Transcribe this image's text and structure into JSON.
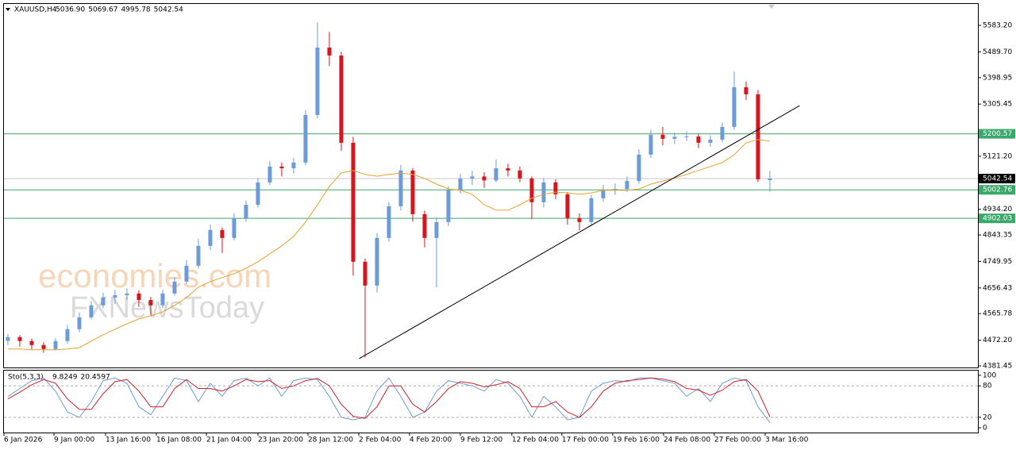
{
  "chart_data": [
    {
      "type": "candlestick",
      "title": "XAUUSD,H4",
      "header_labels": [
        "5036.90",
        "5069.67",
        "4995.78",
        "5042.54"
      ],
      "up_color": "#6b9bd8",
      "down_color": "#d9141c",
      "ohlc": [
        [
          4470,
          4495,
          4455,
          4483
        ],
        [
          4483,
          4490,
          4450,
          4469
        ],
        [
          4469,
          4478,
          4440,
          4455
        ],
        [
          4455,
          4465,
          4428,
          4441
        ],
        [
          4441,
          4480,
          4435,
          4469
        ],
        [
          4469,
          4525,
          4460,
          4511
        ],
        [
          4511,
          4570,
          4500,
          4553
        ],
        [
          4553,
          4610,
          4545,
          4595
        ],
        [
          4595,
          4640,
          4585,
          4623
        ],
        [
          4623,
          4650,
          4600,
          4631
        ],
        [
          4631,
          4655,
          4615,
          4637
        ],
        [
          4637,
          4648,
          4590,
          4614
        ],
        [
          4614,
          4625,
          4560,
          4595
        ],
        [
          4595,
          4650,
          4585,
          4637
        ],
        [
          4637,
          4695,
          4630,
          4679
        ],
        [
          4679,
          4755,
          4670,
          4735
        ],
        [
          4735,
          4830,
          4725,
          4805
        ],
        [
          4805,
          4880,
          4790,
          4861
        ],
        [
          4861,
          4870,
          4780,
          4833
        ],
        [
          4833,
          4920,
          4825,
          4903
        ],
        [
          4903,
          4965,
          4890,
          4950
        ],
        [
          4950,
          5045,
          4940,
          5029
        ],
        [
          5029,
          5105,
          5020,
          5085
        ],
        [
          5085,
          5100,
          5050,
          5079
        ],
        [
          5079,
          5115,
          5060,
          5099
        ],
        [
          5099,
          5285,
          5090,
          5267
        ],
        [
          5267,
          5594,
          5255,
          5505
        ],
        [
          5505,
          5560,
          5440,
          5477
        ],
        [
          5477,
          5490,
          5140,
          5169
        ],
        [
          5169,
          5190,
          4700,
          4749
        ],
        [
          4749,
          4760,
          4411,
          4665
        ],
        [
          4665,
          4850,
          4640,
          4833
        ],
        [
          4833,
          4960,
          4820,
          4945
        ],
        [
          4945,
          5090,
          4930,
          5071
        ],
        [
          5071,
          5080,
          4890,
          4917
        ],
        [
          4917,
          4930,
          4800,
          4833
        ],
        [
          4833,
          4905,
          4659,
          4889
        ],
        [
          4889,
          5015,
          4875,
          5001
        ],
        [
          5001,
          5060,
          4990,
          5043
        ],
        [
          5043,
          5070,
          5020,
          5050
        ],
        [
          5050,
          5065,
          5010,
          5036
        ],
        [
          5036,
          5110,
          5030,
          5079
        ],
        [
          5079,
          5095,
          5050,
          5071
        ],
        [
          5071,
          5085,
          5030,
          5043
        ],
        [
          5043,
          5050,
          4900,
          4959
        ],
        [
          4959,
          5045,
          4940,
          5029
        ],
        [
          5029,
          5040,
          4970,
          4987
        ],
        [
          4987,
          4995,
          4880,
          4903
        ],
        [
          4903,
          4920,
          4860,
          4889
        ],
        [
          4889,
          4985,
          4875,
          4973
        ],
        [
          4973,
          5020,
          4960,
          5001
        ],
        [
          5001,
          5025,
          4985,
          5006
        ],
        [
          5006,
          5050,
          4995,
          5034
        ],
        [
          5034,
          5145,
          5025,
          5127
        ],
        [
          5127,
          5215,
          5115,
          5197
        ],
        [
          5197,
          5225,
          5160,
          5183
        ],
        [
          5183,
          5205,
          5165,
          5190
        ],
        [
          5190,
          5210,
          5175,
          5191
        ],
        [
          5191,
          5200,
          5150,
          5169
        ],
        [
          5169,
          5195,
          5155,
          5180
        ],
        [
          5180,
          5240,
          5170,
          5225
        ],
        [
          5225,
          5420,
          5215,
          5365
        ],
        [
          5365,
          5385,
          5320,
          5340
        ],
        [
          5340,
          5355,
          5030,
          5040
        ],
        [
          5036.9,
          5069.67,
          4995.78,
          5042.54
        ]
      ],
      "ma": {
        "color": "#e8a030",
        "values": [
          4441,
          4441,
          4438,
          4438,
          4438,
          4441,
          4446,
          4469,
          4491,
          4511,
          4530,
          4547,
          4558,
          4572,
          4595,
          4623,
          4659,
          4679,
          4693,
          4707,
          4726,
          4749,
          4777,
          4805,
          4838,
          4889,
          4950,
          5015,
          5062,
          5071,
          5057,
          5051,
          5057,
          5062,
          5057,
          5043,
          5023,
          5006,
          5001,
          4987,
          4950,
          4931,
          4931,
          4950,
          4973,
          4987,
          4995,
          4992,
          4987,
          4992,
          5001,
          5001,
          5001,
          5006,
          5023,
          5034,
          5045,
          5057,
          5071,
          5085,
          5099,
          5127,
          5169,
          5180,
          5175
        ]
      },
      "trendline": {
        "color": "#000000",
        "x": [
          29.5,
          66.5
        ],
        "values": [
          4407,
          5300
        ]
      },
      "levels": [
        {
          "value": 5200.57,
          "color": "#3aa86a",
          "label_color": "#3aa86a"
        },
        {
          "value": 5002.76,
          "color": "#3aa86a",
          "label_color": "#3aa86a"
        },
        {
          "value": 4902.03,
          "color": "#3aa86a",
          "label_color": "#3aa86a"
        },
        {
          "value": 5042.54,
          "color": "#c8c8c8",
          "label_color": "#000000"
        }
      ],
      "ylim": [
        4375.9,
        5658.8
      ],
      "yticks": [
        {
          "value": 5583.2,
          "label": "5583.20"
        },
        {
          "value": 5489.7,
          "label": "5489.70"
        },
        5398.95,
        5305.45,
        {
          "value": 5121.2,
          "label": "5121.20"
        },
        {
          "value": 4934.2,
          "label": "4934.20"
        },
        4843.35,
        4749.95,
        4656.43,
        4565.78,
        {
          "value": 4472.2,
          "label": "4472.20"
        },
        4381.45
      ],
      "xlim": [
        -0.33,
        81.47
      ],
      "xticks": [
        {
          "value": -0.33,
          "label": "6 Jan 2026"
        },
        {
          "value": 3.87,
          "label": "9 Jan 00:00"
        },
        {
          "value": 8.2,
          "label": "13 Jan 16:00"
        },
        {
          "value": 12.47,
          "label": "16 Jan 08:00"
        },
        {
          "value": 16.67,
          "label": "21 Jan 04:00"
        },
        {
          "value": 21,
          "label": "23 Jan 20:00"
        },
        {
          "value": 25.2,
          "label": "28 Jan 12:00"
        },
        {
          "value": 29.47,
          "label": "2 Feb 04:00"
        },
        {
          "value": 33.73,
          "label": "4 Feb 20:00"
        },
        {
          "value": 38,
          "label": "9 Feb 12:00"
        },
        {
          "value": 42.33,
          "label": "12 Feb 04:00"
        },
        {
          "value": 46.53,
          "label": "17 Feb 00:00"
        },
        {
          "value": 50.8,
          "label": "19 Feb 16:00"
        },
        {
          "value": 55.07,
          "label": "24 Feb 08:00"
        },
        {
          "value": 59.33,
          "label": "27 Feb 00:00"
        },
        {
          "value": 63.6,
          "label": "3 Mar 16:00"
        }
      ],
      "watermarks": [
        "economies.com",
        "FXNewsToday"
      ]
    },
    {
      "type": "line",
      "title": "Sto(5,3,3)",
      "series": [
        {
          "color": "#6b9bd8",
          "values": [
            60,
            75,
            90,
            95,
            70,
            30,
            20,
            50,
            90,
            95,
            85,
            40,
            25,
            60,
            95,
            90,
            50,
            85,
            60,
            90,
            95,
            80,
            95,
            60,
            90,
            95,
            92,
            60,
            20,
            15,
            20,
            70,
            95,
            60,
            20,
            30,
            70,
            90,
            85,
            80,
            70,
            92,
            85,
            60,
            20,
            60,
            40,
            15,
            20,
            70,
            85,
            90,
            88,
            95,
            95,
            90,
            85,
            60,
            75,
            50,
            85,
            95,
            90,
            40,
            9.8249
          ]
        },
        {
          "color": "#d0202a",
          "values": [
            55,
            68,
            82,
            92,
            85,
            55,
            35,
            35,
            65,
            88,
            92,
            70,
            40,
            40,
            75,
            92,
            75,
            75,
            70,
            80,
            92,
            88,
            90,
            75,
            80,
            90,
            94,
            80,
            45,
            22,
            18,
            40,
            80,
            80,
            45,
            30,
            50,
            75,
            88,
            85,
            78,
            82,
            88,
            75,
            40,
            40,
            50,
            30,
            20,
            40,
            70,
            85,
            90,
            92,
            95,
            93,
            88,
            75,
            72,
            62,
            72,
            88,
            92,
            70,
            20.4597
          ]
        }
      ],
      "ylim": [
        -9,
        109
      ],
      "yticks": [
        100,
        80,
        20,
        0
      ],
      "levels": [
        80,
        20
      ]
    }
  ]
}
